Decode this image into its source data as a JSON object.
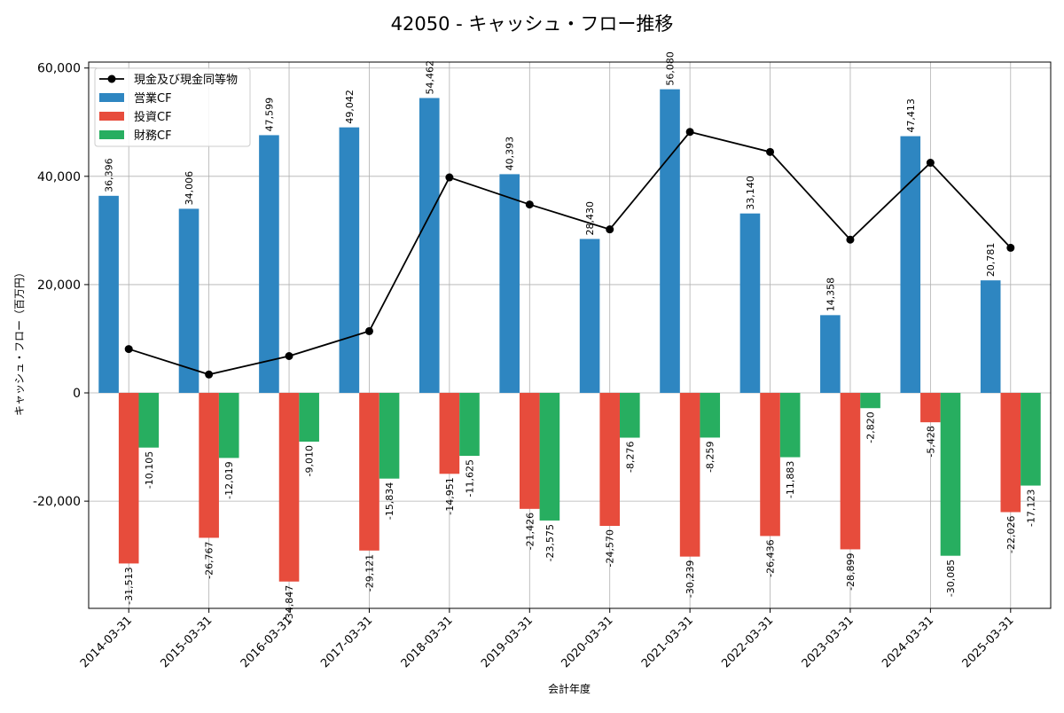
{
  "chart_data": {
    "type": "bar",
    "title": "42050 - キャッシュ・フロー推移",
    "xlabel": "会計年度",
    "ylabel": "キャッシュ・フロー（百万円）",
    "ylim": [
      -39800,
      61100
    ],
    "yticks": [
      -20000,
      0,
      20000,
      40000,
      60000
    ],
    "ytick_labels": [
      "-20,000",
      "0",
      "20,000",
      "40,000",
      "60,000"
    ],
    "grid": true,
    "legend_position": "top-left",
    "categories": [
      "2014-03-31",
      "2015-03-31",
      "2016-03-31",
      "2017-03-31",
      "2018-03-31",
      "2019-03-31",
      "2020-03-31",
      "2021-03-31",
      "2022-03-31",
      "2023-03-31",
      "2024-03-31",
      "2025-03-31"
    ],
    "series": [
      {
        "name": "営業CF",
        "kind": "bar",
        "color": "#2e86c1",
        "values": [
          36396,
          34006,
          47599,
          49042,
          54462,
          40393,
          28430,
          56080,
          33140,
          14358,
          47413,
          20781
        ],
        "labels": [
          "36,396",
          "34,006",
          "47,599",
          "49,042",
          "54,462",
          "40,393",
          "28,430",
          "56,080",
          "33,140",
          "14,358",
          "47,413",
          "20,781"
        ]
      },
      {
        "name": "投資CF",
        "kind": "bar",
        "color": "#e74c3c",
        "values": [
          -31513,
          -26767,
          -34847,
          -29121,
          -14951,
          -21426,
          -24570,
          -30239,
          -26436,
          -28899,
          -5428,
          -22026
        ],
        "labels": [
          "-31,513",
          "-26,767",
          "-34,847",
          "-29,121",
          "-14,951",
          "-21,426",
          "-24,570",
          "-30,239",
          "-26,436",
          "-28,899",
          "-5,428",
          "-22,026"
        ]
      },
      {
        "name": "財務CF",
        "kind": "bar",
        "color": "#27ae60",
        "values": [
          -10105,
          -12019,
          -9010,
          -15834,
          -11625,
          -23575,
          -8276,
          -8259,
          -11883,
          -2820,
          -30085,
          -17123
        ],
        "labels": [
          "-10,105",
          "-12,019",
          "-9,010",
          "-15,834",
          "-11,625",
          "-23,575",
          "-8,276",
          "-8,259",
          "-11,883",
          "-2,820",
          "-30,085",
          "-17,123"
        ]
      },
      {
        "name": "現金及び現金同等物",
        "kind": "line",
        "color": "#000000",
        "values": [
          8100,
          3400,
          6800,
          11400,
          39800,
          34800,
          30200,
          48200,
          44500,
          28300,
          42500,
          26800
        ]
      }
    ]
  }
}
